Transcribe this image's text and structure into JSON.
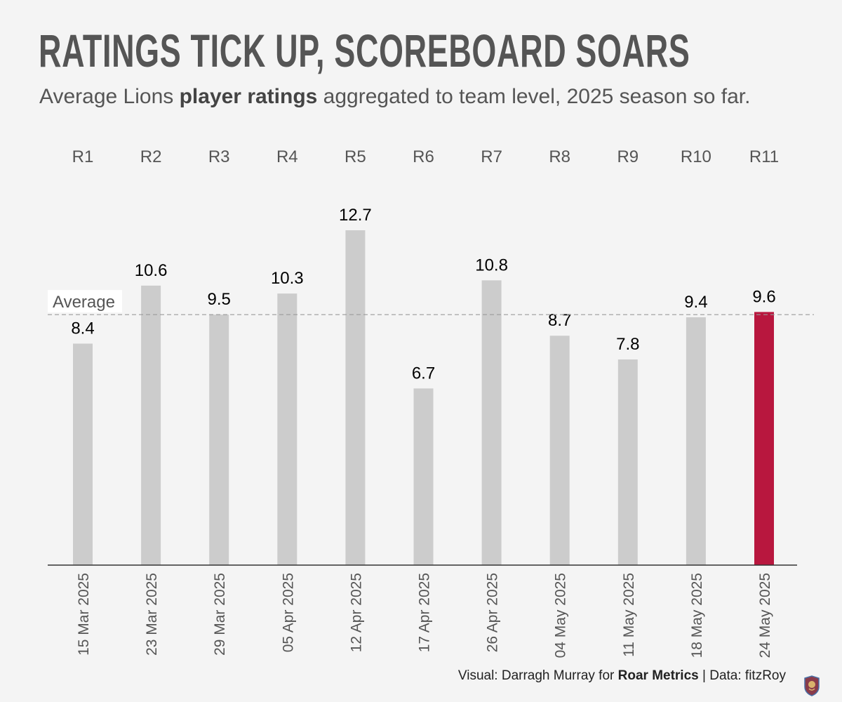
{
  "header": {
    "title": "RATINGS TICK UP, SCOREBOARD SOARS",
    "subtitle_pre": "Average Lions ",
    "subtitle_bold": "player ratings",
    "subtitle_post": " aggregated to team level, 2025 season so far."
  },
  "chart_data": {
    "type": "bar",
    "title": "RATINGS TICK UP, SCOREBOARD SOARS",
    "rounds": [
      "R1",
      "R2",
      "R3",
      "R4",
      "R5",
      "R6",
      "R7",
      "R8",
      "R9",
      "R10",
      "R11"
    ],
    "categories": [
      "15 Mar 2025",
      "23 Mar 2025",
      "29 Mar 2025",
      "05 Apr 2025",
      "12 Apr 2025",
      "17 Apr 2025",
      "26 Apr 2025",
      "04 May 2025",
      "11 May 2025",
      "18 May 2025",
      "24 May 2025"
    ],
    "values": [
      8.4,
      10.6,
      9.5,
      10.3,
      12.7,
      6.7,
      10.8,
      8.7,
      7.8,
      9.4,
      9.6
    ],
    "value_labels": [
      "8.4",
      "10.6",
      "9.5",
      "10.3",
      "12.7",
      "6.7",
      "10.8",
      "8.7",
      "7.8",
      "9.4",
      "9.6"
    ],
    "highlight_index": 10,
    "average_label": "Average",
    "average_value": 9.5,
    "ylim": [
      0,
      13.5
    ],
    "grid": false,
    "colors": {
      "bar": "#cccccc",
      "highlight": "#b8173e",
      "text": "#000000",
      "axis_text": "#555555",
      "average_line": "#999999"
    }
  },
  "footer": {
    "pre": "Visual: Darragh Murray for ",
    "bold": "Roar Metrics",
    "post": " | Data: fitzRoy"
  },
  "logo": {
    "icon": "lion-crest-icon"
  }
}
